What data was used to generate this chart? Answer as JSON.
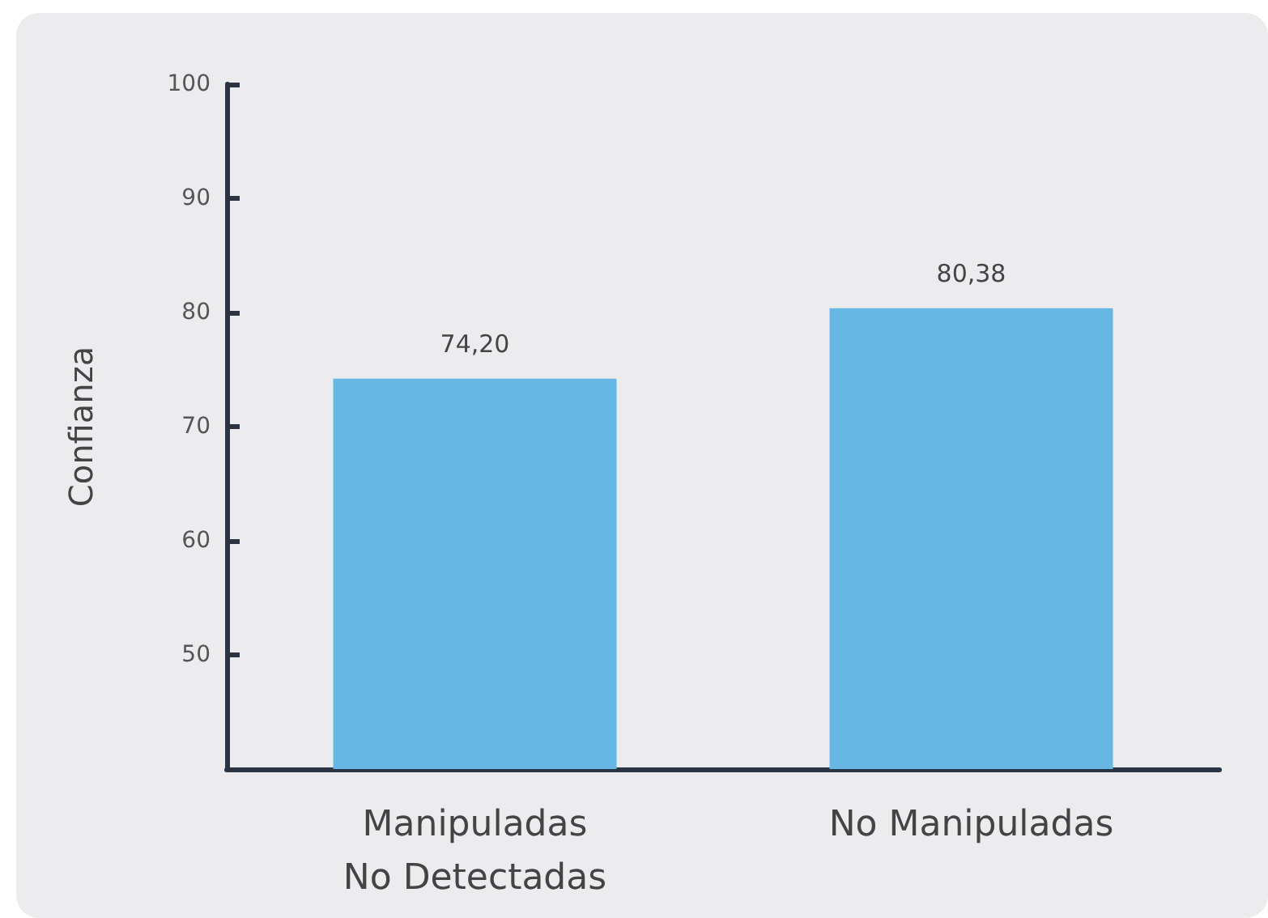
{
  "chart_data": {
    "type": "bar",
    "ylabel": "Confianza",
    "categories": [
      "Manipuladas\nNo Detectadas",
      "No Manipuladas"
    ],
    "values": [
      74.2,
      80.38
    ],
    "value_labels": [
      "74,20",
      "80,38"
    ],
    "color": "#67b7e5",
    "ylim": [
      40,
      100
    ],
    "yticks": [
      50,
      60,
      70,
      80,
      90,
      100
    ],
    "grid": false
  }
}
